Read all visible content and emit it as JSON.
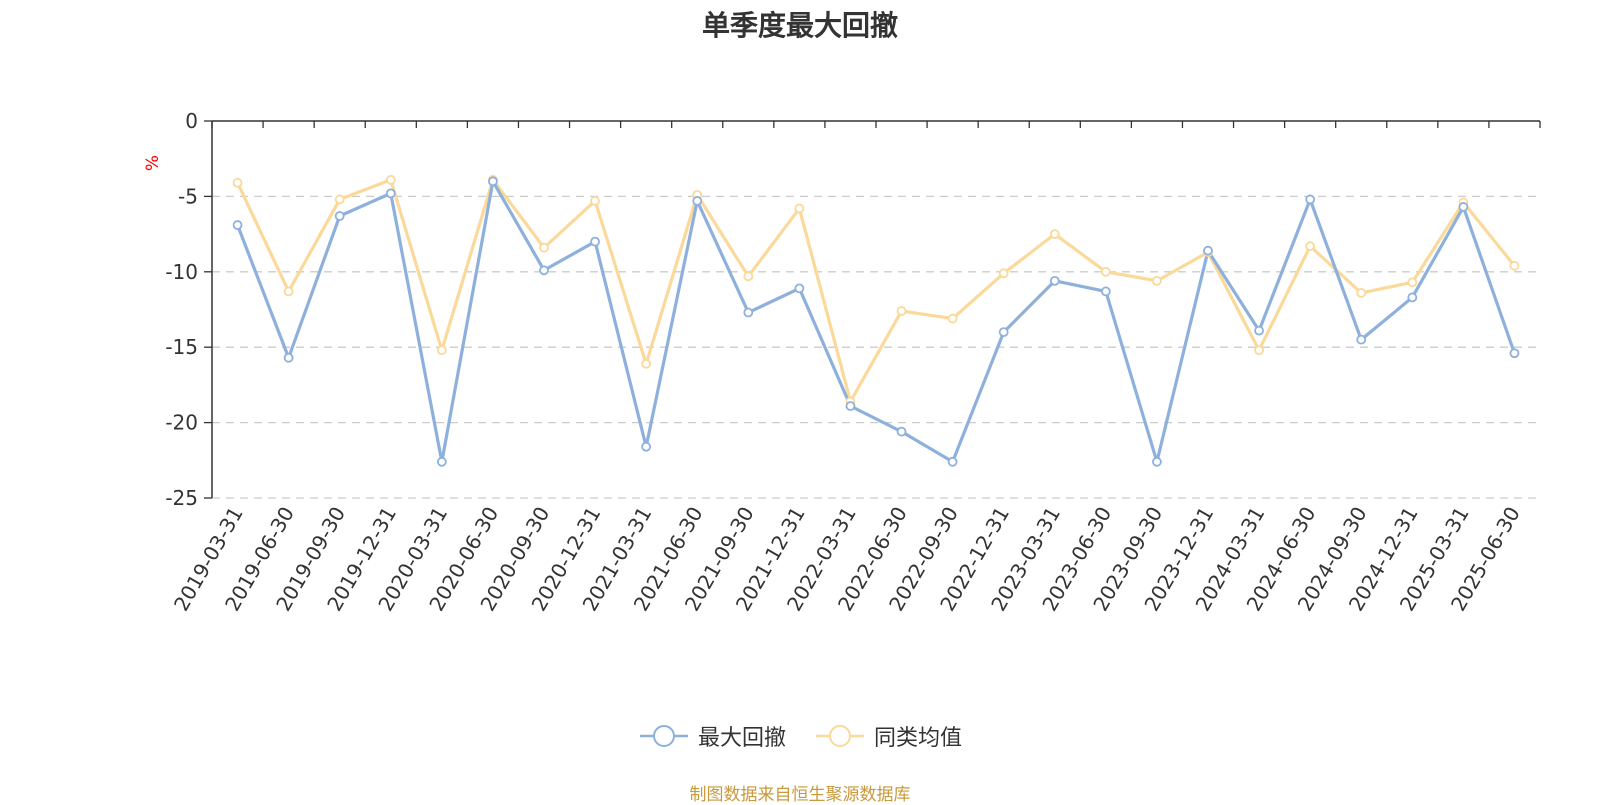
{
  "chart_data": {
    "type": "line",
    "title": "单季度最大回撤",
    "ylabel": "%",
    "xlabel": "",
    "ylim": [
      -25,
      0
    ],
    "yticks": [
      0,
      -5,
      -10,
      -15,
      -20,
      -25
    ],
    "grid": true,
    "legend_position": "bottom",
    "categories": [
      "2019-03-31",
      "2019-06-30",
      "2019-09-30",
      "2019-12-31",
      "2020-03-31",
      "2020-06-30",
      "2020-09-30",
      "2020-12-31",
      "2021-03-31",
      "2021-06-30",
      "2021-09-30",
      "2021-12-31",
      "2022-03-31",
      "2022-06-30",
      "2022-09-30",
      "2022-12-31",
      "2023-03-31",
      "2023-06-30",
      "2023-09-30",
      "2023-12-31",
      "2024-03-31",
      "2024-06-30",
      "2024-09-30",
      "2024-12-31",
      "2025-03-31",
      "2025-06-30"
    ],
    "series": [
      {
        "name": "最大回撤",
        "color": "#8eb0dc",
        "values": [
          -6.9,
          -15.7,
          -6.3,
          -4.8,
          -22.6,
          -4.0,
          -9.9,
          -8.0,
          -21.6,
          -5.3,
          -12.7,
          -11.1,
          -18.9,
          -20.6,
          -22.6,
          -14.0,
          -10.6,
          -11.3,
          -22.6,
          -8.6,
          -13.9,
          -5.2,
          -14.5,
          -11.7,
          -5.7,
          -15.4
        ]
      },
      {
        "name": "同类均值",
        "color": "#fad99a",
        "values": [
          -4.1,
          -11.3,
          -5.2,
          -3.9,
          -15.2,
          -3.9,
          -8.4,
          -5.3,
          -16.1,
          -4.9,
          -10.3,
          -5.8,
          -18.6,
          -12.6,
          -13.1,
          -10.1,
          -7.5,
          -10.0,
          -10.6,
          -8.7,
          -15.2,
          -8.3,
          -11.4,
          -10.7,
          -5.4,
          -9.6
        ]
      }
    ]
  },
  "footer": {
    "source_text": "制图数据来自恒生聚源数据库"
  }
}
